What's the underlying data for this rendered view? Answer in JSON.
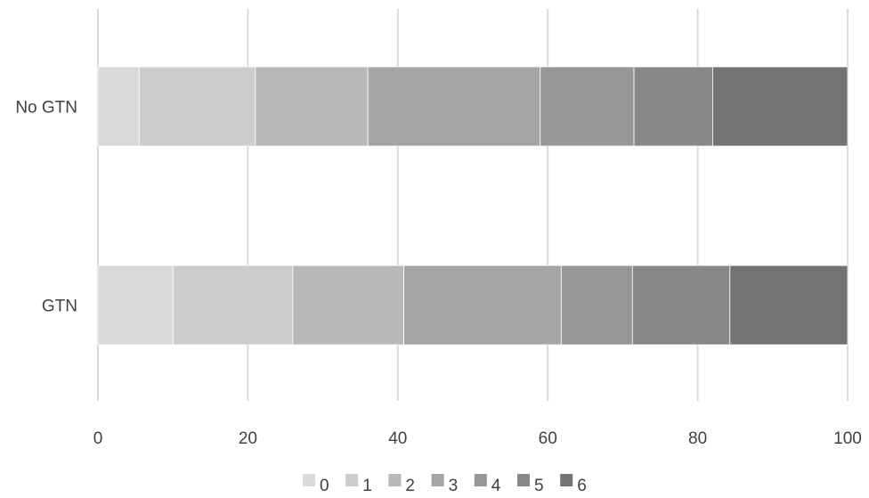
{
  "chart_data": {
    "type": "bar",
    "orientation": "horizontal",
    "stacked": true,
    "categories": [
      "No GTN",
      "GTN"
    ],
    "series": [
      {
        "name": "0",
        "color": "#d9d9d9",
        "values": [
          5.5,
          10.0
        ]
      },
      {
        "name": "1",
        "color": "#cccccc",
        "values": [
          15.5,
          16.0
        ]
      },
      {
        "name": "2",
        "color": "#b8b8b8",
        "values": [
          15.0,
          14.8
        ]
      },
      {
        "name": "3",
        "color": "#a5a5a5",
        "values": [
          23.0,
          21.0
        ]
      },
      {
        "name": "4",
        "color": "#979797",
        "values": [
          12.5,
          9.5
        ]
      },
      {
        "name": "5",
        "color": "#888888",
        "values": [
          10.5,
          13.0
        ]
      },
      {
        "name": "6",
        "color": "#737373",
        "values": [
          18.0,
          15.7
        ]
      }
    ],
    "xlim": [
      0,
      100
    ],
    "xticks": [
      0,
      20,
      40,
      60,
      80,
      100
    ],
    "grid": "vertical",
    "legend": "bottom",
    "title": "",
    "xlabel": "",
    "ylabel": ""
  }
}
